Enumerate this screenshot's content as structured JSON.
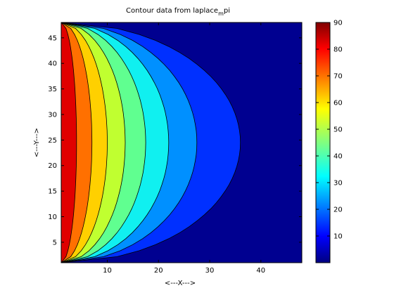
{
  "chart_data": {
    "type": "contourf",
    "title": "Contour data from laplace",
    "title_subscript": "m",
    "title_suffix": "pi",
    "xlabel": "<---X--->",
    "ylabel": "<---Y--->",
    "xlim": [
      1,
      48
    ],
    "ylim": [
      1,
      48
    ],
    "x_ticks": [
      10,
      20,
      30,
      40
    ],
    "y_ticks": [
      5,
      10,
      15,
      20,
      25,
      30,
      35,
      40,
      45
    ],
    "colorbar": {
      "range": [
        0,
        90
      ],
      "ticks": [
        10,
        20,
        30,
        40,
        50,
        60,
        70,
        80,
        90
      ],
      "colormap": "jet"
    },
    "contour_levels": [
      10,
      20,
      30,
      40,
      50,
      60,
      70,
      80
    ],
    "contour_max_x_at_center": [
      36,
      27.5,
      22,
      17.5,
      13.5,
      10,
      7,
      4
    ],
    "band_colors": [
      "#000090",
      "#0030ff",
      "#0090ff",
      "#10f0f0",
      "#60ff90",
      "#c0ff30",
      "#ffd000",
      "#ff7000",
      "#e00000",
      "#800000"
    ]
  }
}
